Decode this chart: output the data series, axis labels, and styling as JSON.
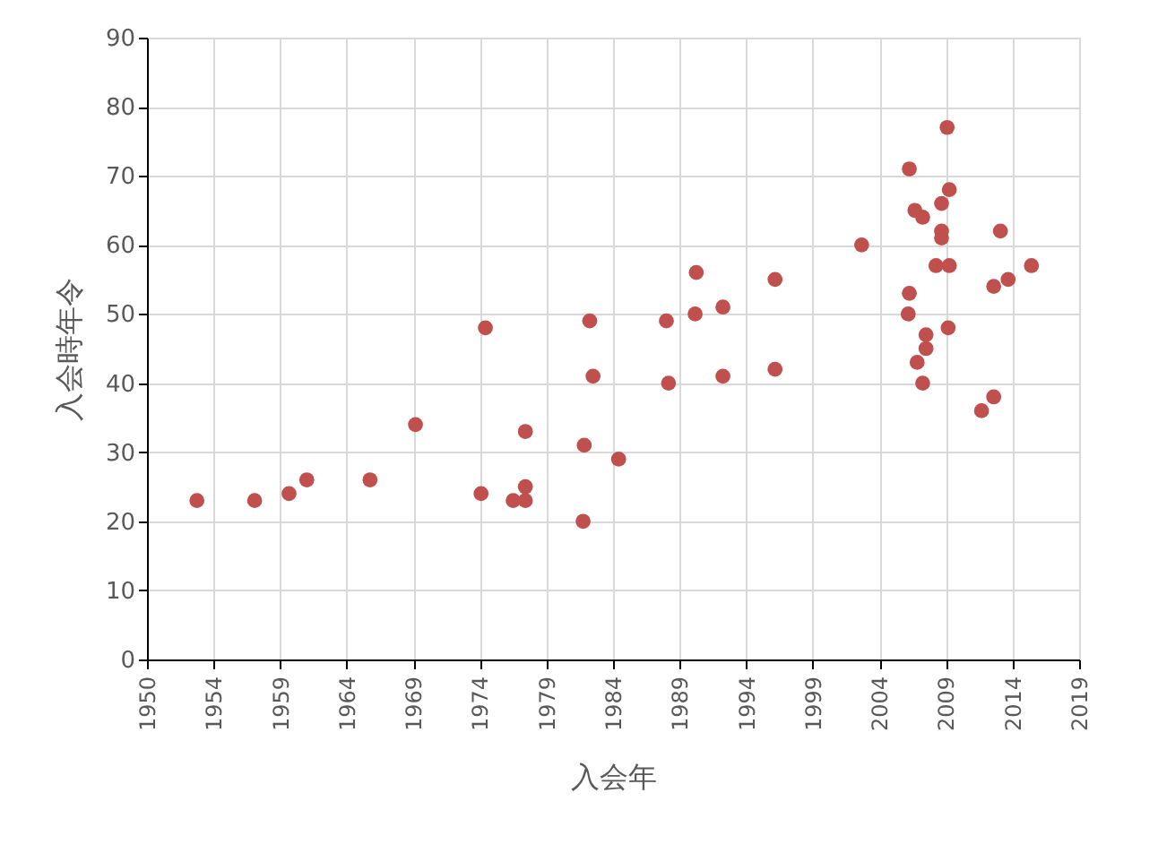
{
  "chart_data": {
    "type": "scatter",
    "xlabel": "入会年",
    "ylabel": "入会時年令",
    "x": [
      "1953-10",
      "1958-02",
      "1960-09",
      "1962-01",
      "1966-10",
      "1970-03",
      "1975-06",
      "1975-02",
      "1977-07",
      "1978-06",
      "1978-06",
      "1978-06",
      "1983-04",
      "1983-07",
      "1982-11",
      "1982-10",
      "1985-06",
      "1989-01",
      "1989-03",
      "1991-04",
      "1991-03",
      "1993-04",
      "1993-04",
      "1997-03",
      "1997-03",
      "2003-09",
      "2007-04",
      "2007-09",
      "2008-04",
      "2007-04",
      "2007-03",
      "2008-07",
      "2008-07",
      "2007-11",
      "2008-04",
      "2010-02",
      "2009-09",
      "2010-04",
      "2009-09",
      "2009-09",
      "2009-04",
      "2010-04",
      "2010-03",
      "2014-02",
      "2013-08",
      "2014-09",
      "2016-06",
      "2013-08",
      "2012-09"
    ],
    "series": [
      {
        "color": "#c0504d",
        "values": [
          23,
          23,
          24,
          26,
          26,
          34,
          48,
          24,
          23,
          23,
          25,
          33,
          49,
          41,
          31,
          20,
          29,
          49,
          40,
          56,
          50,
          51,
          41,
          55,
          42,
          60,
          71,
          65,
          64,
          53,
          50,
          47,
          45,
          43,
          40,
          77,
          66,
          68,
          62,
          61,
          57,
          57,
          48,
          62,
          54,
          55,
          57,
          38,
          36
        ]
      }
    ],
    "xlim": [
      "1950-01-01",
      "2019-12-31"
    ],
    "xticks": [
      {
        "value": "1950-01-01",
        "label": "1950"
      },
      {
        "value": "1954-12-31",
        "label": "1954"
      },
      {
        "value": "1959-12-31",
        "label": "1959"
      },
      {
        "value": "1964-12-31",
        "label": "1964"
      },
      {
        "value": "1969-12-31",
        "label": "1969"
      },
      {
        "value": "1974-12-31",
        "label": "1974"
      },
      {
        "value": "1979-12-31",
        "label": "1979"
      },
      {
        "value": "1984-12-31",
        "label": "1984"
      },
      {
        "value": "1989-12-31",
        "label": "1989"
      },
      {
        "value": "1994-12-31",
        "label": "1994"
      },
      {
        "value": "1999-12-31",
        "label": "1999"
      },
      {
        "value": "2004-12-31",
        "label": "2004"
      },
      {
        "value": "2009-12-31",
        "label": "2009"
      },
      {
        "value": "2014-12-31",
        "label": "2014"
      },
      {
        "value": "2019-12-31",
        "label": "2019"
      }
    ],
    "ylim": [
      0,
      90
    ],
    "yticks": [
      0,
      10,
      20,
      30,
      40,
      50,
      60,
      70,
      80,
      90
    ],
    "grid": true,
    "marker": "circle"
  }
}
